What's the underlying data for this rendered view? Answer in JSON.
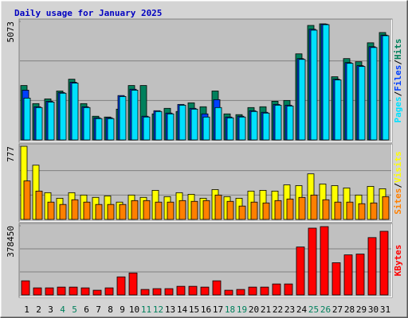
{
  "chart_data": [
    {
      "type": "bar",
      "title": "Daily usage for January 2025",
      "ylim": [
        0,
        5073
      ],
      "yticks": [
        5073
      ],
      "series": [
        {
          "name": "Hits",
          "color": "#00805c",
          "values": [
            2330,
            1555,
            1757,
            2095,
            2600,
            1555,
            1014,
            980,
            1318,
            2330,
            2330,
            1115,
            1352,
            1217,
            1589,
            1420,
            2095,
            1115,
            1082,
            1386,
            1420,
            1656,
            1690,
            3686,
            4903,
            4971,
            2705,
            3483,
            3348,
            4159,
            4599
          ]
        },
        {
          "name": "Files",
          "color": "#0040ff",
          "values": [
            2130,
            1420,
            1656,
            2030,
            2470,
            1420,
            946,
            946,
            1900,
            2170,
            1014,
            1250,
            1150,
            1520,
            1352,
            1115,
            1724,
            980,
            1014,
            1250,
            1183,
            1520,
            1487,
            3480,
            4740,
            4960,
            2600,
            3310,
            3180,
            3990,
            4490
          ]
        },
        {
          "name": "Pages",
          "color": "#00e0ff",
          "values": [
            1791,
            1386,
            1622,
            2000,
            2433,
            1386,
            913,
            913,
            1859,
            2130,
            980,
            1217,
            1115,
            1487,
            1318,
            980,
            1386,
            946,
            980,
            1217,
            1149,
            1487,
            1453,
            3448,
            4700,
            4936,
            2569,
            3280,
            3145,
            3956,
            4463
          ]
        }
      ],
      "legend_separator": "/"
    },
    {
      "type": "bar",
      "ylim": [
        0,
        777
      ],
      "yticks": [
        777
      ],
      "series": [
        {
          "name": "Visits",
          "color": "#ffff00",
          "values": [
            777,
            576,
            284,
            225,
            284,
            259,
            234,
            250,
            184,
            259,
            234,
            309,
            242,
            284,
            267,
            225,
            317,
            242,
            225,
            301,
            309,
            301,
            367,
            359,
            484,
            376,
            359,
            334,
            259,
            351,
            326
          ]
        },
        {
          "name": "Sites",
          "color": "#ff8000",
          "values": [
            409,
            301,
            184,
            159,
            209,
            184,
            159,
            159,
            159,
            200,
            200,
            184,
            184,
            200,
            192,
            200,
            259,
            192,
            142,
            184,
            175,
            200,
            217,
            234,
            259,
            209,
            184,
            184,
            167,
            175,
            242
          ]
        }
      ],
      "legend_separator": "/"
    },
    {
      "type": "bar",
      "ylim": [
        0,
        378450
      ],
      "yticks": [
        378450
      ],
      "series": [
        {
          "name": "KBytes",
          "color": "#ff0000",
          "values": [
            77400,
            38700,
            38700,
            43000,
            43000,
            38700,
            25800,
            38700,
            98900,
            120400,
            30100,
            34400,
            34400,
            47300,
            47300,
            43000,
            77400,
            25800,
            30100,
            43000,
            43000,
            60200,
            60200,
            262300,
            365500,
            374000,
            176300,
            219300,
            223600,
            313900,
            348300
          ]
        }
      ],
      "categories": [
        "1",
        "2",
        "3",
        "4",
        "5",
        "6",
        "7",
        "8",
        "9",
        "10",
        "11",
        "12",
        "13",
        "14",
        "15",
        "16",
        "17",
        "18",
        "19",
        "20",
        "21",
        "22",
        "23",
        "24",
        "25",
        "26",
        "27",
        "28",
        "29",
        "30",
        "31"
      ],
      "category_colors": [
        "#000",
        "#000",
        "#000",
        "#00805c",
        "#00805c",
        "#000",
        "#000",
        "#000",
        "#000",
        "#000",
        "#00805c",
        "#00805c",
        "#000",
        "#000",
        "#000",
        "#000",
        "#000",
        "#00805c",
        "#00805c",
        "#000",
        "#000",
        "#000",
        "#000",
        "#000",
        "#00805c",
        "#00805c",
        "#000",
        "#000",
        "#000",
        "#000",
        "#000"
      ]
    }
  ]
}
